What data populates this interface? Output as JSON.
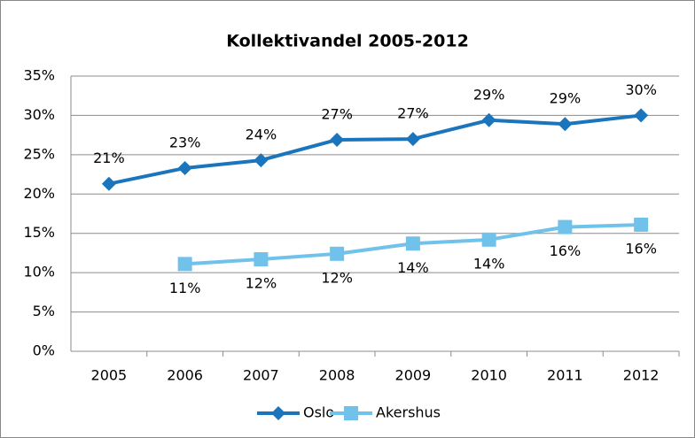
{
  "chart_data": {
    "type": "line",
    "title": "Kollektivandel 2005-2012",
    "categories": [
      "2005",
      "2006",
      "2007",
      "2008",
      "2009",
      "2010",
      "2011",
      "2012"
    ],
    "series": [
      {
        "name": "Oslo",
        "color": "#1a75bc",
        "marker": "diamond",
        "values": [
          21.3,
          23.3,
          24.3,
          26.9,
          27.0,
          29.4,
          28.9,
          30.0
        ],
        "value_labels": [
          "21%",
          "23%",
          "24%",
          "27%",
          "27%",
          "29%",
          "29%",
          "30%"
        ]
      },
      {
        "name": "Akershus",
        "color": "#71c2ea",
        "marker": "square",
        "values": [
          null,
          11.1,
          11.7,
          12.4,
          13.7,
          14.2,
          15.8,
          16.1
        ],
        "value_labels": [
          null,
          "11%",
          "12%",
          "12%",
          "14%",
          "14%",
          "16%",
          "16%"
        ]
      }
    ],
    "ylim": [
      0,
      35
    ],
    "yticks": [
      {
        "value": 0,
        "label": "0%"
      },
      {
        "value": 5,
        "label": "5%"
      },
      {
        "value": 10,
        "label": "10%"
      },
      {
        "value": 15,
        "label": "15%"
      },
      {
        "value": 20,
        "label": "20%"
      },
      {
        "value": 25,
        "label": "25%"
      },
      {
        "value": 30,
        "label": "30%"
      },
      {
        "value": 35,
        "label": "35%"
      }
    ],
    "grid": true,
    "legend": "bottom"
  }
}
